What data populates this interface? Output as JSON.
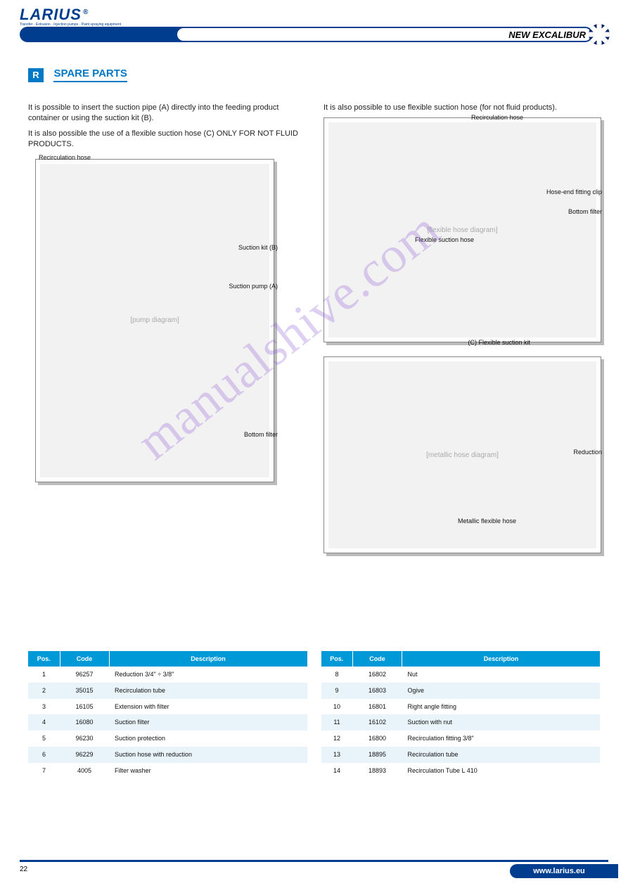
{
  "header": {
    "logo_text": "LARIUS",
    "logo_subtitle": "Transfer · Extrusion · Injection pumps · Paint spraying equipment",
    "product_name": "NEW EXCALIBUR"
  },
  "section": {
    "marker": "R",
    "title": "SPARE PARTS"
  },
  "left_block": {
    "intro1": "It is possible to insert the suction pipe (A) directly into the feeding product container or using the suction kit (B).",
    "intro2": "It is also possible the use of a flexible suction hose (C) ONLY FOR NOT FLUID PRODUCTS.",
    "labels": {
      "recirc": "Recirculation\nhose",
      "suction_kit": "Suction kit\n(B)",
      "pump": "Suction pump\n(A)",
      "filter": "Bottom filter"
    }
  },
  "right_block": {
    "intro": "It is also possible to use flexible suction hose (for not fluid products).",
    "labels": {
      "recirc": "Recirculation\nhose",
      "clip": "Hose-end\nfitting clip",
      "bottom_filter": "Bottom filter",
      "flex_hose": "Flexible\nsuction\nhose",
      "flex_kit": "(C) Flexible suction kit",
      "reduction": "Reduction",
      "metal_hose": "Metallic\nflexible hose"
    }
  },
  "table1": {
    "headers": [
      "Pos.",
      "Code",
      "Description"
    ],
    "rows": [
      [
        "1",
        "96257",
        "Reduction 3/4\" ÷ 3/8\""
      ],
      [
        "2",
        "35015",
        "Recirculation tube"
      ],
      [
        "3",
        "16105",
        "Extension with filter"
      ],
      [
        "4",
        "16080",
        "Suction filter"
      ],
      [
        "5",
        "96230",
        "Suction protection"
      ],
      [
        "6",
        "96229",
        "Suction hose with reduction"
      ],
      [
        "7",
        "4005",
        "Filter washer"
      ]
    ]
  },
  "table2": {
    "headers": [
      "Pos.",
      "Code",
      "Description"
    ],
    "rows": [
      [
        "8",
        "16802",
        "Nut"
      ],
      [
        "9",
        "16803",
        "Ogive"
      ],
      [
        "10",
        "16801",
        "Right angle fitting"
      ],
      [
        "11",
        "16102",
        "Suction with nut"
      ],
      [
        "12",
        "16800",
        "Recirculation fitting 3/8\""
      ],
      [
        "13",
        "18895",
        "Recirculation tube"
      ],
      [
        "14",
        "18893",
        "Recirculation Tube L 410"
      ]
    ]
  },
  "footer": {
    "url": "www.larius.eu",
    "page": "22"
  },
  "watermark": "manualshive.com",
  "colors": {
    "brand_blue": "#003d8f",
    "accent_blue": "#0079c6",
    "table_header": "#0099d8",
    "row_alt": "#e9f4fa",
    "watermark": "#8b59d6"
  }
}
